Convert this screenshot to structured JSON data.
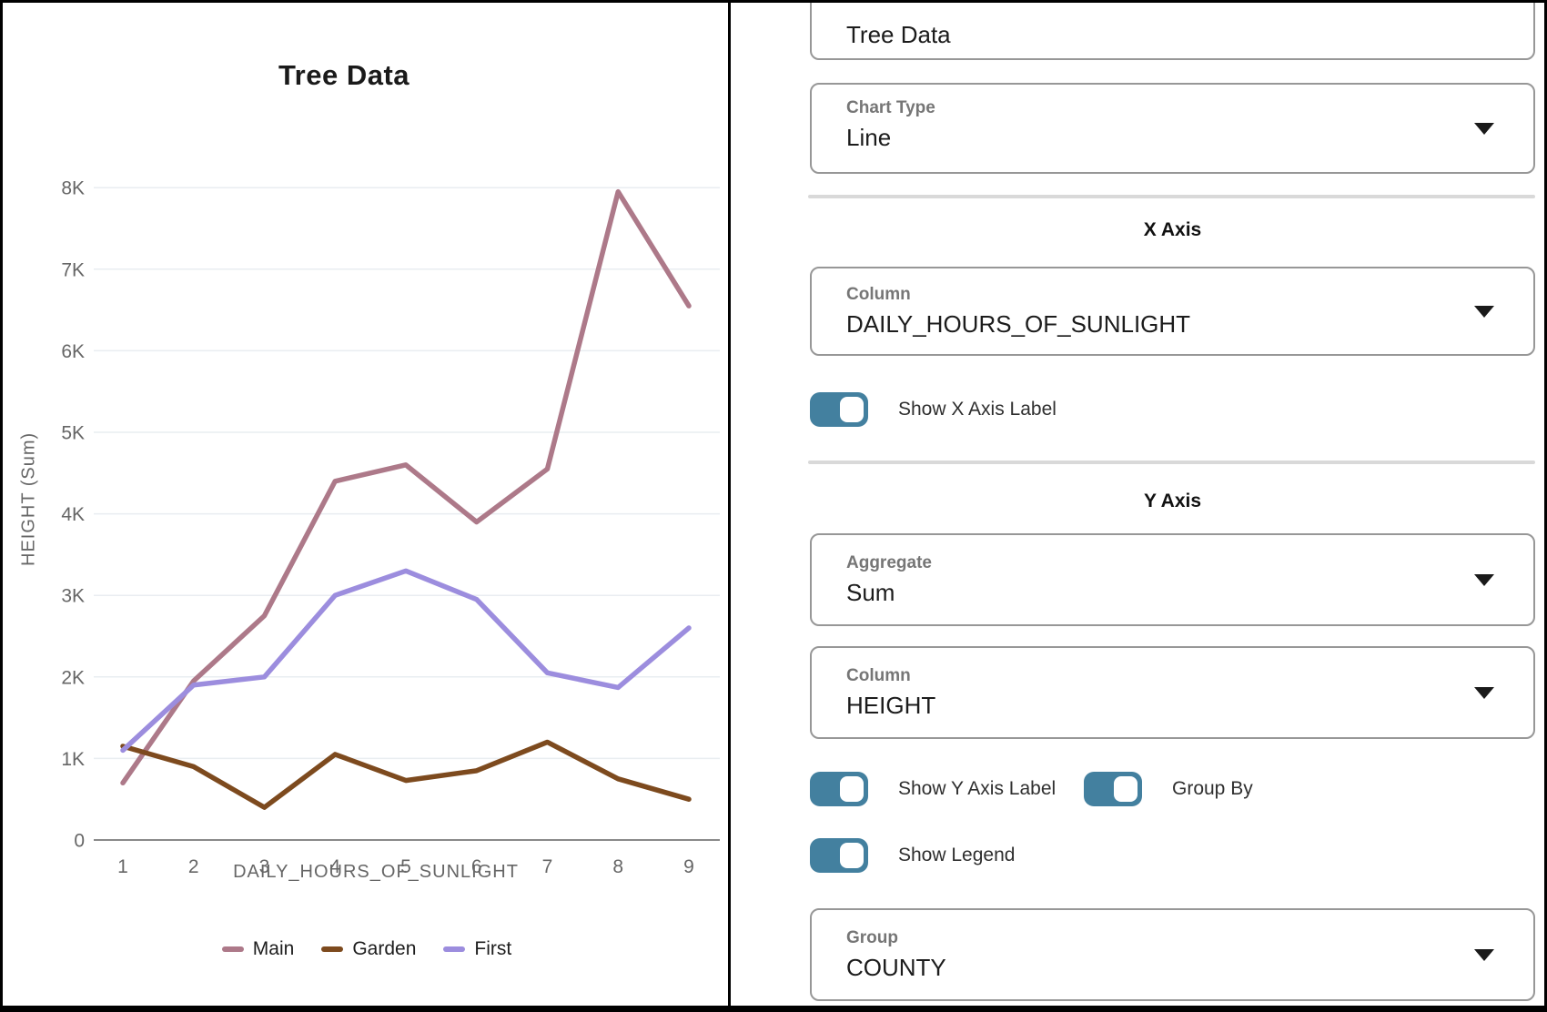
{
  "colors": {
    "toggle_on": "#43809f",
    "box_border": "#979797",
    "gridline": "#e9edf1",
    "axis_line": "#8a8a8a",
    "tick_text": "#666666"
  },
  "chart_data": {
    "type": "line",
    "title": "Tree Data",
    "xlabel": "DAILY_HOURS_OF_SUNLIGHT",
    "ylabel": "HEIGHT (Sum)",
    "x": [
      1,
      2,
      3,
      4,
      5,
      6,
      7,
      8,
      9
    ],
    "ylim": [
      0,
      8000
    ],
    "ytick_step": 1000,
    "ytick_labels": [
      "0",
      "1K",
      "2K",
      "3K",
      "4K",
      "5K",
      "6K",
      "7K",
      "8K"
    ],
    "grid": true,
    "legend_position": "bottom",
    "series": [
      {
        "name": "Main",
        "color": "#ad7989",
        "values": [
          700,
          1950,
          2750,
          4400,
          4600,
          3900,
          4550,
          7950,
          6550
        ]
      },
      {
        "name": "Garden",
        "color": "#7d4a1e",
        "values": [
          1150,
          900,
          400,
          1050,
          730,
          850,
          1200,
          750,
          500
        ]
      },
      {
        "name": "First",
        "color": "#9c8dde",
        "values": [
          1100,
          1900,
          2000,
          3000,
          3300,
          2950,
          2050,
          1870,
          2600
        ]
      }
    ]
  },
  "panel": {
    "title_input": {
      "value": "Tree Data"
    },
    "chart_type": {
      "label": "Chart Type",
      "value": "Line"
    },
    "x_axis": {
      "heading": "X Axis",
      "column": {
        "label": "Column",
        "value": "DAILY_HOURS_OF_SUNLIGHT"
      },
      "show_label_toggle": {
        "label": "Show X Axis Label",
        "on": true
      }
    },
    "y_axis": {
      "heading": "Y Axis",
      "aggregate": {
        "label": "Aggregate",
        "value": "Sum"
      },
      "column": {
        "label": "Column",
        "value": "HEIGHT"
      },
      "show_label_toggle": {
        "label": "Show Y Axis Label",
        "on": true
      },
      "group_by_toggle": {
        "label": "Group By",
        "on": true
      },
      "show_legend_toggle": {
        "label": "Show Legend",
        "on": true
      },
      "group": {
        "label": "Group",
        "value": "COUNTY"
      }
    }
  }
}
